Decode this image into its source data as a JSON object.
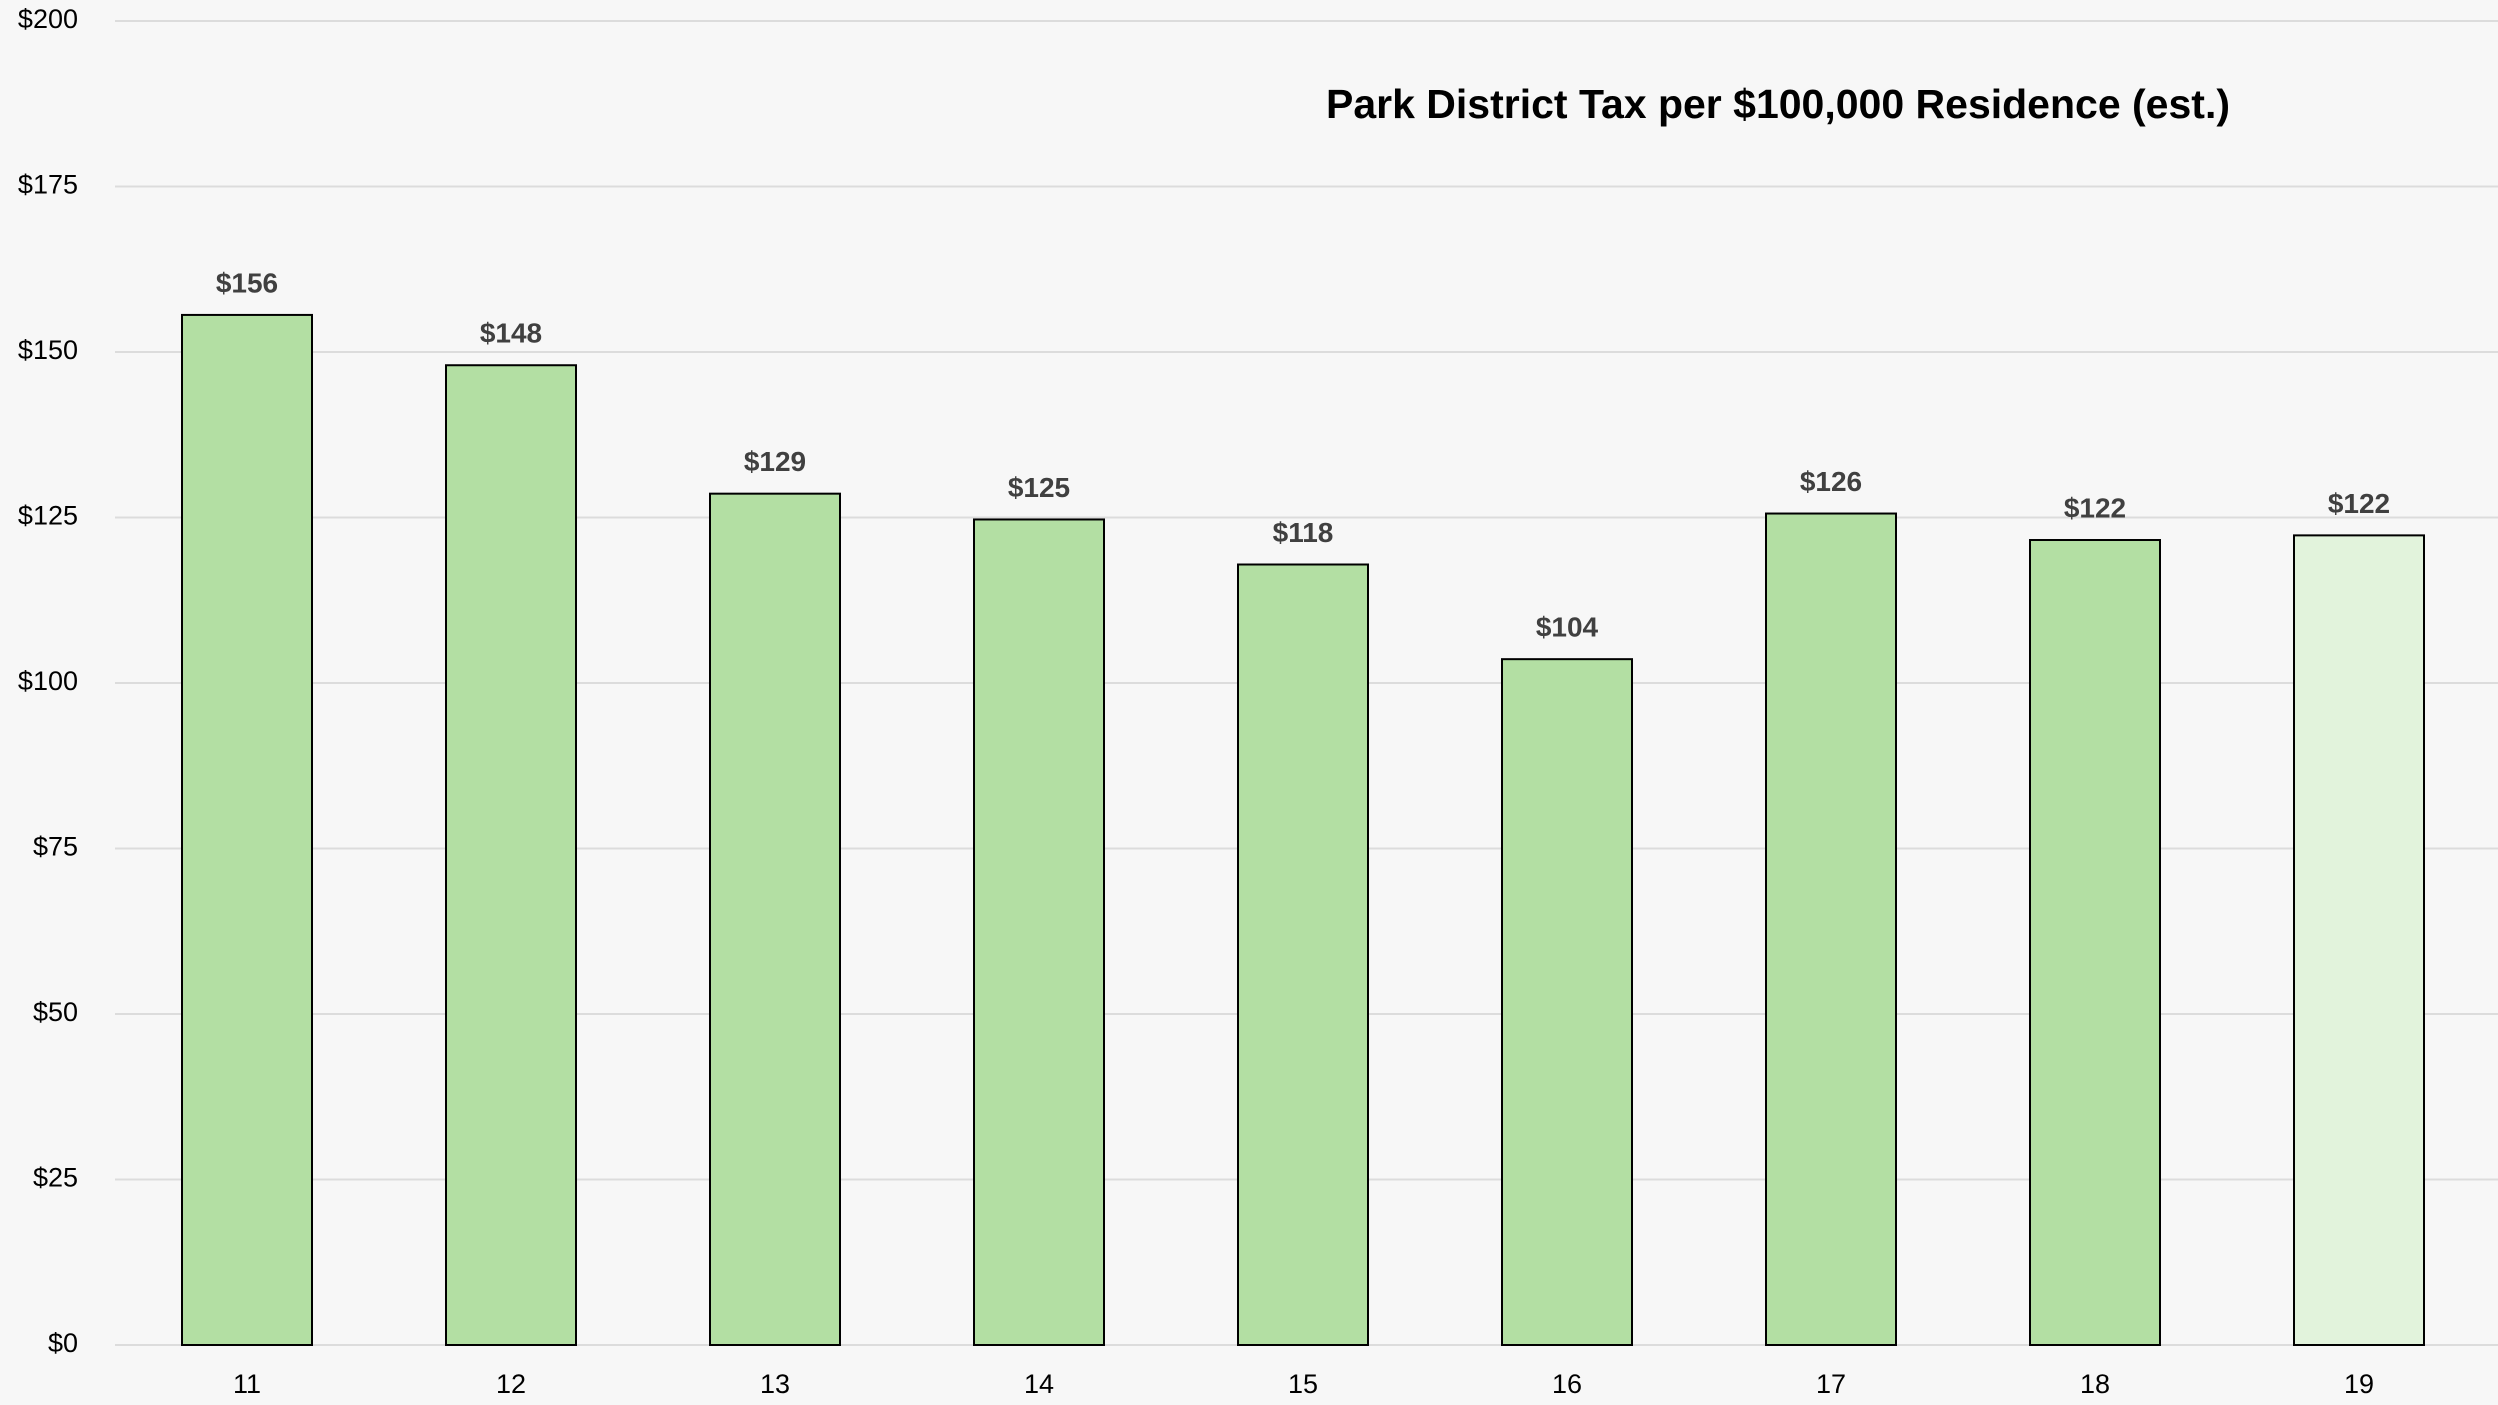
{
  "chart_data": {
    "type": "bar",
    "title": "Park District Tax per $100,000 Residence (est.)",
    "categories": [
      "11",
      "12",
      "13",
      "14",
      "15",
      "16",
      "17",
      "18",
      "19"
    ],
    "values": [
      155.6,
      148,
      128.6,
      124.7,
      117.9,
      103.6,
      125.6,
      121.6,
      122.3
    ],
    "value_labels": [
      "$156",
      "$148",
      "$129",
      "$125",
      "$118",
      "$104",
      "$126",
      "$122",
      "$122"
    ],
    "colors": [
      "#b3dfa3",
      "#b3dfa3",
      "#b3dfa3",
      "#b3dfa3",
      "#b3dfa3",
      "#b3dfa3",
      "#b3dfa3",
      "#b3dfa3",
      "#e2f3dc"
    ],
    "ylim": [
      0,
      200
    ],
    "yticks": [
      {
        "value": 0,
        "label": "$0"
      },
      {
        "value": 25,
        "label": "$25"
      },
      {
        "value": 50,
        "label": "$50"
      },
      {
        "value": 75,
        "label": "$75"
      },
      {
        "value": 100,
        "label": "$100"
      },
      {
        "value": 125,
        "label": "$125"
      },
      {
        "value": 150,
        "label": "$150"
      },
      {
        "value": 175,
        "label": "$175"
      },
      {
        "value": 200,
        "label": "$200"
      }
    ],
    "grid": true
  }
}
